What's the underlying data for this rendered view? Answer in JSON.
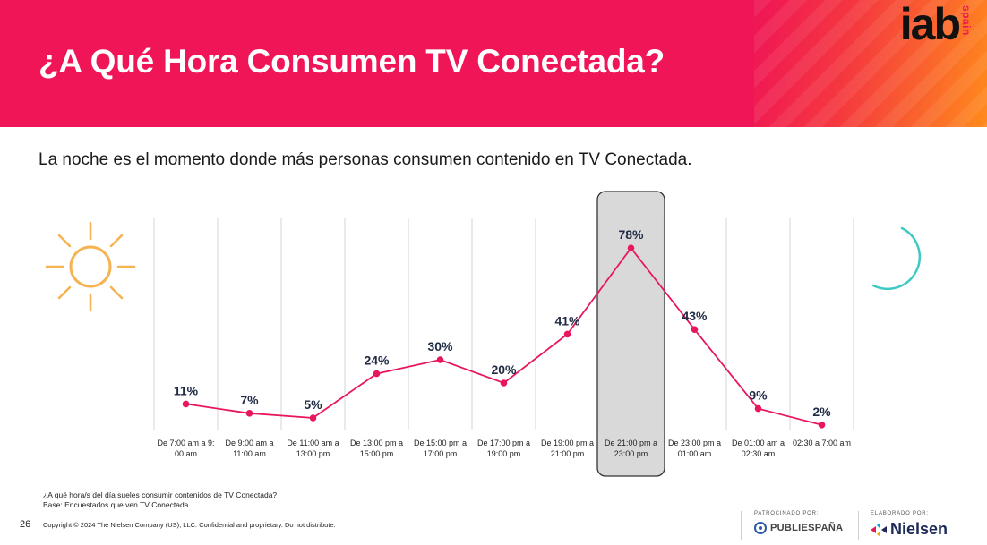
{
  "header": {
    "title": "¿A Qué Hora Consumen TV Conectada?",
    "logo_main": "iab",
    "logo_sub": "spain",
    "color": "#ef1556"
  },
  "subtitle": "La noche es el momento donde más personas consumen contenido en TV Conectada.",
  "icons": {
    "left": "sun-icon",
    "right": "moon-icon"
  },
  "chart_data": {
    "type": "line",
    "title": "",
    "xlabel": "",
    "ylabel": "",
    "ylim": [
      0,
      100
    ],
    "grid": "vertical",
    "highlight_index": 7,
    "line_color": "#e8175d",
    "categories": [
      [
        "De 7:00 am a 9:",
        "00 am"
      ],
      [
        "De 9:00 am a",
        "11:00 am"
      ],
      [
        "De 11:00 am a",
        "13:00 pm"
      ],
      [
        "De 13:00 pm a",
        "15:00 pm"
      ],
      [
        "De 15:00 pm a",
        "17:00 pm"
      ],
      [
        "De 17:00 pm a",
        "19:00 pm"
      ],
      [
        "De 19:00 pm a",
        "21:00 pm"
      ],
      [
        "De 21:00 pm a",
        "23:00 pm"
      ],
      [
        "De 23:00 pm a",
        "01:00 am"
      ],
      [
        "De 01:00 am a",
        "02:30 am"
      ],
      [
        "02:30 a 7:00 am"
      ]
    ],
    "values": [
      11,
      7,
      5,
      24,
      30,
      20,
      41,
      78,
      43,
      9,
      2
    ],
    "labels": [
      "11%",
      "7%",
      "5%",
      "24%",
      "30%",
      "20%",
      "41%",
      "78%",
      "43%",
      "9%",
      "2%"
    ]
  },
  "footer": {
    "question": "¿A qué hora/s del día sueles consumir contenidos de TV Conectada?",
    "base": "Base: Encuestados que ven TV Conectada",
    "page_number": "26",
    "copyright": "Copyright © 2024 The Nielsen Company (US), LLC. Confidential and proprietary. Do not distribute.",
    "sponsor_caption": "PATROCINADO POR:",
    "sponsor_name": "PUBLIESPAÑA",
    "elaborated_caption": "ELABORADO POR:",
    "elaborated_name": "Nielsen"
  }
}
